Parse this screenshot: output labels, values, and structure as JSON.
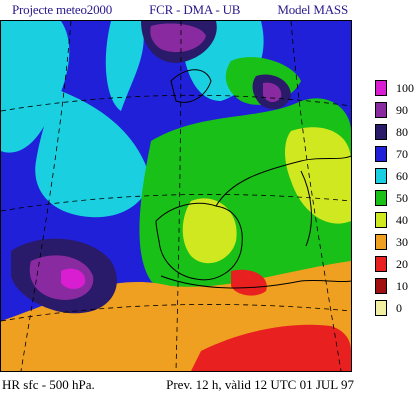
{
  "header": {
    "project": "Projecte meteo2000",
    "institution": "FCR - DMA - UB",
    "model": "Model  MASS"
  },
  "footer": {
    "field": "HR sfc - 500 hPa.",
    "forecast": "Prev. 12 h, vàlid 12 UTC 01 JUL 97"
  },
  "legend": {
    "items": [
      {
        "label": "100",
        "color": "#d81ed0"
      },
      {
        "label": "90",
        "color": "#8a2aa0"
      },
      {
        "label": "80",
        "color": "#2a1a6a"
      },
      {
        "label": "70",
        "color": "#2020d8"
      },
      {
        "label": "60",
        "color": "#1ad0e0"
      },
      {
        "label": "50",
        "color": "#18c018"
      },
      {
        "label": "40",
        "color": "#d0e820"
      },
      {
        "label": "30",
        "color": "#f0a020"
      },
      {
        "label": "20",
        "color": "#e82020"
      },
      {
        "label": "10",
        "color": "#a01010"
      },
      {
        "label": "0",
        "color": "#f0f0a0"
      }
    ]
  }
}
